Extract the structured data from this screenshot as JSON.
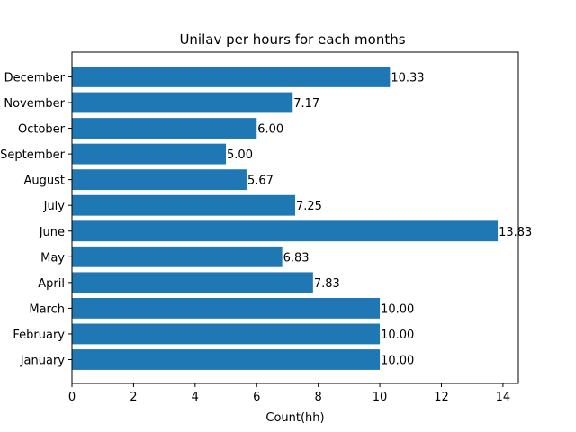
{
  "chart_data": {
    "type": "bar",
    "orientation": "horizontal",
    "title": "Unilav per hours for each months",
    "xlabel": "Count(hh)",
    "ylabel": "",
    "categories": [
      "January",
      "February",
      "March",
      "April",
      "May",
      "June",
      "July",
      "August",
      "September",
      "October",
      "November",
      "December"
    ],
    "values": [
      10.0,
      10.0,
      10.0,
      7.83,
      6.83,
      13.83,
      7.25,
      5.67,
      5.0,
      6.0,
      7.17,
      10.33
    ],
    "data_labels": [
      "10.00",
      "10.00",
      "10.00",
      "7.83",
      "6.83",
      "13.83",
      "7.25",
      "5.67",
      "5.00",
      "6.00",
      "7.17",
      "10.33"
    ],
    "xlim": [
      0,
      14.5
    ],
    "x_ticks": [
      0,
      2,
      4,
      6,
      8,
      10,
      12,
      14
    ],
    "grid": false,
    "legend": "none",
    "bar_color": "#1f77b4"
  }
}
